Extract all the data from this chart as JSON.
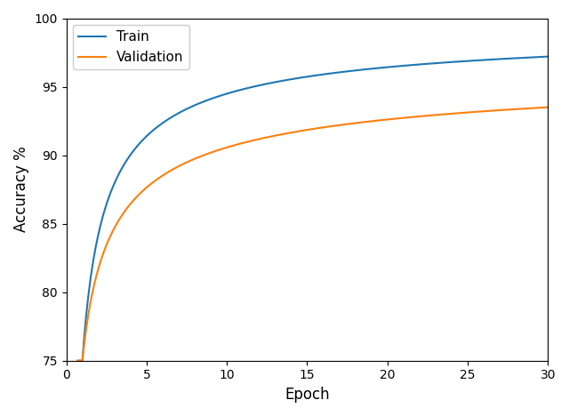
{
  "title": "",
  "xlabel": "Epoch",
  "ylabel": "Accuracy %",
  "xlim": [
    0,
    30
  ],
  "ylim": [
    75,
    100
  ],
  "yticks": [
    75,
    80,
    85,
    90,
    95,
    100
  ],
  "xticks": [
    0,
    5,
    10,
    15,
    20,
    25,
    30
  ],
  "train_color": "#1f77b4",
  "val_color": "#ff7f0e",
  "train_label": "Train",
  "val_label": "Validation",
  "figsize": [
    6.4,
    4.68
  ],
  "dpi": 100,
  "train_a": 5.62,
  "train_b": 75.0,
  "train_c": 0.72,
  "val_a": 4.75,
  "val_b": 75.0,
  "val_c": 0.85
}
